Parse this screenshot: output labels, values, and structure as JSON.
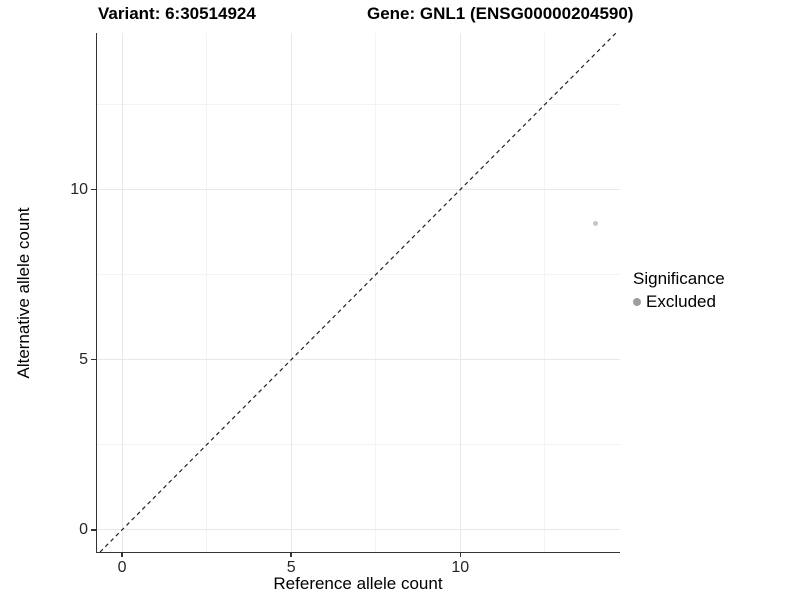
{
  "header": {
    "title_left": "Variant: 6:30514924",
    "title_right": "Gene: GNL1 (ENSG00000204590)"
  },
  "legend": {
    "title": "Significance",
    "items": [
      {
        "label": "Excluded",
        "color": "#9e9e9e"
      }
    ]
  },
  "chart_data": {
    "type": "scatter",
    "title": "Variant: 6:30514924 / Gene: GNL1 (ENSG00000204590)",
    "xlabel": "Reference allele count",
    "ylabel": "Alternative allele count",
    "x_range": [
      -0.74,
      14.72
    ],
    "y_range": [
      -0.65,
      14.6
    ],
    "x_ticks": [
      0,
      5,
      10
    ],
    "y_ticks": [
      0,
      5,
      10
    ],
    "x_minor_ticks": [
      2.5,
      7.5,
      12.5
    ],
    "y_minor_ticks": [
      2.5,
      7.5,
      12.5
    ],
    "grid": true,
    "legend_position": "right",
    "series": [
      {
        "name": "Excluded",
        "color": "#c6c6c6",
        "points": [
          {
            "x": 14,
            "y": 9
          }
        ]
      }
    ],
    "reference_line": {
      "kind": "identity",
      "slope": 1,
      "intercept": 0,
      "style": "dashed",
      "color": "#222222"
    }
  },
  "colors": {
    "background": "#ffffff",
    "axis_line": "#333333",
    "grid_major": "#e8e8e8",
    "grid_minor": "#f3f3f3",
    "tick_label": "#262626",
    "title": "#000000"
  }
}
